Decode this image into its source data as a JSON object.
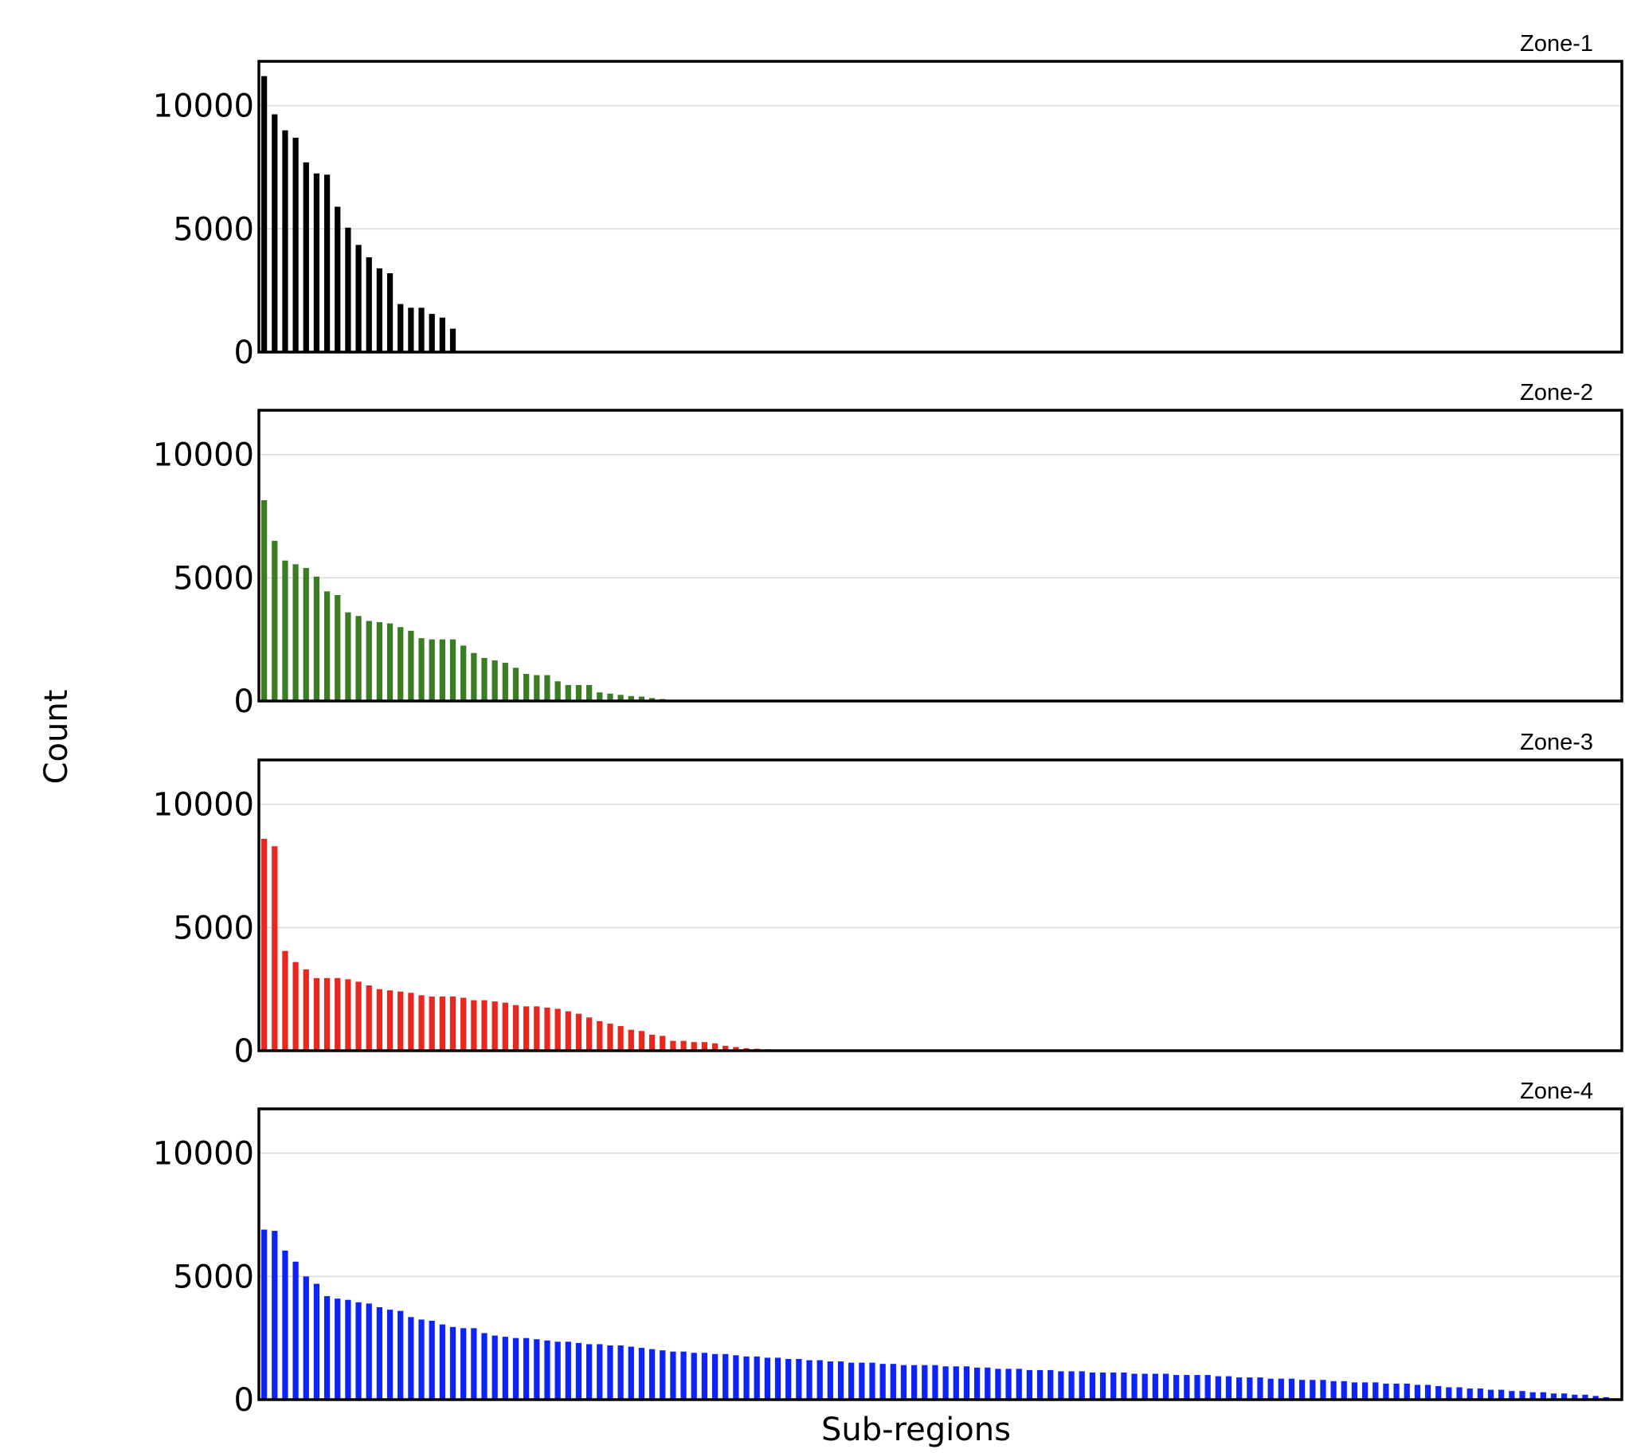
{
  "chart_data": {
    "type": "bar",
    "xlabel": "Sub-regions",
    "ylabel": "Count",
    "ylim": [
      0,
      11800
    ],
    "yticks": [
      0,
      5000,
      10000
    ],
    "grid": "horizontal",
    "shared_x_slots": 130,
    "panels": [
      {
        "title": "Zone-1",
        "color": "#000000",
        "values": [
          11200,
          9650,
          9000,
          8700,
          7700,
          7250,
          7200,
          5900,
          5050,
          4350,
          3850,
          3400,
          3200,
          1950,
          1800,
          1800,
          1550,
          1400,
          950
        ]
      },
      {
        "title": "Zone-2",
        "color": "#3a7d22",
        "values": [
          8150,
          6500,
          5700,
          5550,
          5400,
          5050,
          4450,
          4300,
          3600,
          3450,
          3250,
          3200,
          3150,
          3000,
          2850,
          2550,
          2500,
          2500,
          2500,
          2250,
          1950,
          1750,
          1650,
          1550,
          1350,
          1100,
          1050,
          1050,
          800,
          650,
          650,
          650,
          350,
          300,
          250,
          200,
          180,
          120,
          80,
          50
        ]
      },
      {
        "title": "Zone-3",
        "color": "#e8281e",
        "values": [
          8600,
          8300,
          4050,
          3600,
          3300,
          2950,
          2950,
          2950,
          2900,
          2800,
          2650,
          2500,
          2450,
          2400,
          2350,
          2250,
          2200,
          2200,
          2200,
          2150,
          2050,
          2050,
          2000,
          1950,
          1850,
          1800,
          1800,
          1750,
          1700,
          1600,
          1500,
          1350,
          1200,
          1100,
          1000,
          850,
          800,
          650,
          600,
          400,
          400,
          350,
          350,
          300,
          200,
          150,
          100,
          80,
          60,
          50,
          40,
          30,
          20
        ]
      },
      {
        "title": "Zone-4",
        "color": "#0d23f7",
        "values": [
          6900,
          6850,
          6050,
          5600,
          5000,
          4700,
          4200,
          4100,
          4050,
          3950,
          3900,
          3750,
          3650,
          3600,
          3350,
          3250,
          3200,
          3050,
          2950,
          2900,
          2900,
          2700,
          2600,
          2550,
          2500,
          2500,
          2450,
          2400,
          2350,
          2350,
          2300,
          2250,
          2250,
          2200,
          2200,
          2150,
          2100,
          2050,
          2000,
          1950,
          1950,
          1900,
          1900,
          1850,
          1850,
          1800,
          1750,
          1750,
          1700,
          1700,
          1650,
          1650,
          1600,
          1600,
          1550,
          1550,
          1500,
          1500,
          1500,
          1450,
          1450,
          1400,
          1400,
          1400,
          1400,
          1350,
          1350,
          1350,
          1300,
          1300,
          1250,
          1250,
          1250,
          1200,
          1200,
          1200,
          1150,
          1150,
          1150,
          1100,
          1100,
          1100,
          1100,
          1050,
          1050,
          1050,
          1050,
          1000,
          1000,
          1000,
          1000,
          950,
          950,
          900,
          900,
          900,
          850,
          850,
          850,
          800,
          800,
          800,
          750,
          750,
          700,
          700,
          700,
          650,
          650,
          650,
          600,
          600,
          550,
          500,
          500,
          450,
          450,
          400,
          400,
          350,
          350,
          300,
          300,
          250,
          250,
          200,
          200,
          150,
          100,
          50
        ]
      }
    ]
  }
}
